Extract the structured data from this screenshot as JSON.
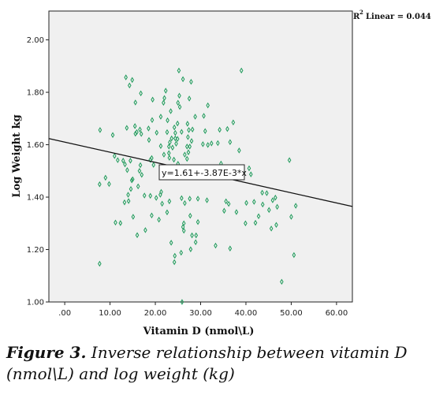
{
  "chart_data": {
    "type": "scatter",
    "xlabel": "Vitamin D (nmol\\L)",
    "ylabel": "Log Weight kg",
    "xlim": [
      -3.5,
      63.5
    ],
    "ylim": [
      1.0,
      2.11
    ],
    "x_ticks": [
      ".00",
      "10.00",
      "20.00",
      "30.00",
      "40.00",
      "50.00",
      "60.00"
    ],
    "y_ticks": [
      "1.00",
      "1.20",
      "1.40",
      "1.60",
      "1.80",
      "2.00"
    ],
    "x_tick_values": [
      0,
      10,
      20,
      30,
      40,
      50,
      60
    ],
    "y_tick_values": [
      1.0,
      1.2,
      1.4,
      1.6,
      1.8,
      2.0
    ],
    "r2_label": "Linear = 0.044",
    "equation_label": "y=1.61+-3.87E-3*x",
    "fit": {
      "intercept": 1.61,
      "slope": -0.00387
    },
    "marker_color": "#1e9a5a",
    "plot_background": "#f0f0f0",
    "grid": false,
    "points": [
      [
        7.7,
        1.146
      ],
      [
        7.7,
        1.449
      ],
      [
        7.8,
        1.656
      ],
      [
        9.0,
        1.474
      ],
      [
        9.8,
        1.45
      ],
      [
        10.6,
        1.637
      ],
      [
        11.0,
        1.557
      ],
      [
        11.2,
        1.303
      ],
      [
        11.7,
        1.541
      ],
      [
        12.3,
        1.301
      ],
      [
        12.9,
        1.539
      ],
      [
        13.2,
        1.38
      ],
      [
        13.3,
        1.525
      ],
      [
        13.5,
        1.857
      ],
      [
        13.7,
        1.664
      ],
      [
        13.8,
        1.503
      ],
      [
        14.0,
        1.409
      ],
      [
        14.1,
        1.385
      ],
      [
        14.3,
        1.826
      ],
      [
        14.5,
        1.539
      ],
      [
        14.6,
        1.431
      ],
      [
        14.8,
        1.464
      ],
      [
        14.9,
        1.847
      ],
      [
        15.0,
        1.468
      ],
      [
        15.1,
        1.325
      ],
      [
        15.5,
        1.671
      ],
      [
        15.6,
        1.761
      ],
      [
        15.6,
        1.642
      ],
      [
        15.9,
        1.648
      ],
      [
        16.0,
        1.255
      ],
      [
        16.2,
        1.441
      ],
      [
        16.5,
        1.5
      ],
      [
        16.6,
        1.658
      ],
      [
        16.7,
        1.522
      ],
      [
        16.8,
        1.796
      ],
      [
        16.9,
        1.641
      ],
      [
        17.0,
        1.485
      ],
      [
        17.6,
        1.406
      ],
      [
        17.8,
        1.274
      ],
      [
        18.5,
        1.662
      ],
      [
        18.6,
        1.618
      ],
      [
        18.9,
        1.405
      ],
      [
        18.9,
        1.542
      ],
      [
        19.2,
        1.33
      ],
      [
        19.2,
        1.549
      ],
      [
        19.3,
        1.694
      ],
      [
        19.4,
        1.772
      ],
      [
        19.6,
        1.523
      ],
      [
        20.2,
        1.397
      ],
      [
        20.3,
        1.646
      ],
      [
        20.8,
        1.314
      ],
      [
        21.1,
        1.409
      ],
      [
        21.2,
        1.707
      ],
      [
        21.2,
        1.595
      ],
      [
        21.3,
        1.42
      ],
      [
        21.5,
        1.375
      ],
      [
        21.8,
        1.76
      ],
      [
        21.9,
        1.562
      ],
      [
        22.0,
        1.778
      ],
      [
        22.3,
        1.806
      ],
      [
        22.6,
        1.648
      ],
      [
        22.6,
        1.342
      ],
      [
        22.7,
        1.693
      ],
      [
        23.0,
        1.593
      ],
      [
        23.0,
        1.568
      ],
      [
        23.1,
        1.55
      ],
      [
        23.1,
        1.384
      ],
      [
        23.2,
        1.609
      ],
      [
        23.4,
        1.728
      ],
      [
        23.5,
        1.226
      ],
      [
        23.6,
        1.624
      ],
      [
        23.8,
        1.589
      ],
      [
        24.1,
        1.543
      ],
      [
        24.2,
        1.152
      ],
      [
        24.2,
        1.666
      ],
      [
        24.3,
        1.176
      ],
      [
        24.4,
        1.645
      ],
      [
        24.4,
        1.624
      ],
      [
        24.6,
        1.604
      ],
      [
        24.9,
        1.622
      ],
      [
        24.9,
        1.681
      ],
      [
        25.0,
        1.76
      ],
      [
        25.0,
        1.527
      ],
      [
        25.2,
        1.883
      ],
      [
        25.3,
        1.787
      ],
      [
        25.4,
        1.744
      ],
      [
        25.7,
        1.188
      ],
      [
        25.8,
        1.649
      ],
      [
        25.8,
        1.396
      ],
      [
        25.9,
        1.0
      ],
      [
        26.1,
        1.85
      ],
      [
        26.1,
        1.286
      ],
      [
        26.3,
        1.3
      ],
      [
        26.3,
        1.272
      ],
      [
        26.5,
        1.562
      ],
      [
        26.5,
        1.377
      ],
      [
        26.9,
        1.512
      ],
      [
        27.0,
        1.593
      ],
      [
        27.0,
        1.546
      ],
      [
        27.1,
        1.68
      ],
      [
        27.2,
        1.629
      ],
      [
        27.3,
        1.571
      ],
      [
        27.4,
        1.656
      ],
      [
        27.5,
        1.776
      ],
      [
        27.6,
        1.593
      ],
      [
        27.6,
        1.394
      ],
      [
        27.7,
        1.329
      ],
      [
        27.8,
        1.201
      ],
      [
        27.9,
        1.84
      ],
      [
        28.0,
        1.614
      ],
      [
        28.1,
        1.254
      ],
      [
        28.2,
        1.658
      ],
      [
        28.8,
        1.707
      ],
      [
        28.9,
        1.228
      ],
      [
        29.0,
        1.254
      ],
      [
        29.4,
        1.394
      ],
      [
        29.4,
        1.305
      ],
      [
        30.5,
        1.602
      ],
      [
        30.7,
        1.71
      ],
      [
        31.0,
        1.652
      ],
      [
        31.4,
        1.388
      ],
      [
        31.6,
        1.599
      ],
      [
        31.6,
        1.75
      ],
      [
        32.4,
        1.605
      ],
      [
        33.3,
        1.215
      ],
      [
        33.8,
        1.606
      ],
      [
        34.2,
        1.657
      ],
      [
        34.5,
        1.528
      ],
      [
        34.6,
        1.499
      ],
      [
        35.2,
        1.348
      ],
      [
        35.6,
        1.384
      ],
      [
        35.9,
        1.66
      ],
      [
        36.2,
        1.374
      ],
      [
        36.5,
        1.204
      ],
      [
        36.5,
        1.61
      ],
      [
        37.2,
        1.685
      ],
      [
        37.9,
        1.343
      ],
      [
        38.5,
        1.578
      ],
      [
        38.8,
        1.493
      ],
      [
        39.0,
        1.883
      ],
      [
        39.5,
        1.495
      ],
      [
        39.9,
        1.3
      ],
      [
        40.1,
        1.378
      ],
      [
        40.7,
        1.51
      ],
      [
        41.1,
        1.487
      ],
      [
        41.8,
        1.382
      ],
      [
        42.1,
        1.302
      ],
      [
        42.8,
        1.327
      ],
      [
        43.6,
        1.417
      ],
      [
        43.7,
        1.372
      ],
      [
        44.6,
        1.415
      ],
      [
        45.1,
        1.351
      ],
      [
        45.6,
        1.28
      ],
      [
        45.9,
        1.388
      ],
      [
        46.5,
        1.398
      ],
      [
        46.7,
        1.294
      ],
      [
        46.9,
        1.363
      ],
      [
        47.9,
        1.077
      ],
      [
        49.6,
        1.541
      ],
      [
        50.0,
        1.325
      ],
      [
        50.6,
        1.179
      ],
      [
        51.0,
        1.367
      ]
    ]
  },
  "caption": {
    "label": "Figure 3.",
    "text": " Inverse relationship between vitamin D (nmol\\L) and log weight (kg)"
  }
}
